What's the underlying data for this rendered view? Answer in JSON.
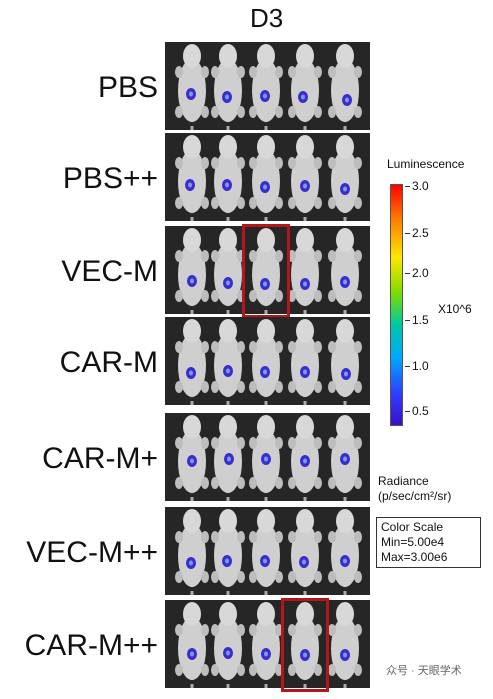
{
  "figure": {
    "day_label": "D3",
    "rows": [
      {
        "label": "PBS",
        "highlight": null
      },
      {
        "label": "PBS++",
        "highlight": null
      },
      {
        "label": "VEC-M",
        "highlight": 3
      },
      {
        "label": "CAR-M",
        "highlight": null
      },
      {
        "label": "CAR-M+",
        "highlight": null
      },
      {
        "label": "VEC-M++",
        "highlight": null
      },
      {
        "label": "CAR-M++",
        "highlight": 4
      }
    ],
    "mice_per_row": 5,
    "highlight_color": "#b5161c"
  },
  "colorbar": {
    "title": "Luminescence",
    "ticks": [
      "3.0",
      "2.5",
      "2.0",
      "1.5",
      "1.0",
      "0.5"
    ],
    "multiplier": "X10^6",
    "unit_line1": "Radiance",
    "unit_line2": "(p/sec/cm²/sr)"
  },
  "color_scale": {
    "title": "Color Scale",
    "min": "Min=5.00e4",
    "max": "Max=3.00e6"
  },
  "watermark": "众号 · 天眼学术"
}
